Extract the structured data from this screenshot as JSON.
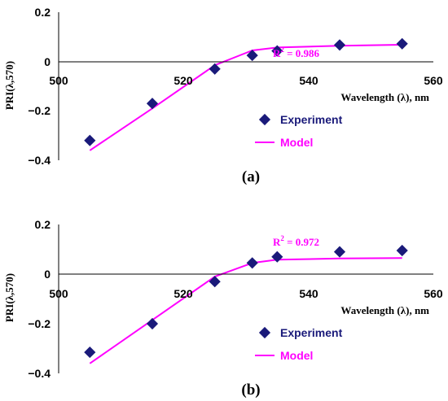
{
  "colors": {
    "experiment": "#1a1a7a",
    "model": "#ff00ff",
    "axis": "#000000"
  },
  "chart_data": [
    {
      "type": "scatter",
      "panel_label": "(a)",
      "xlabel": "Wavelength (λ), nm",
      "ylabel": "PRI(λ,570)",
      "xlim": [
        500,
        560
      ],
      "ylim": [
        -0.4,
        0.2
      ],
      "x_ticks": [
        "500",
        "520",
        "540",
        "560"
      ],
      "y_ticks": [
        "0.2",
        "0",
        "−0.2",
        "−0.4"
      ],
      "annotation": {
        "prefix": "R",
        "sup": "2",
        "suffix": " = 0.986"
      },
      "legend": {
        "placement": "lower-right",
        "experiment": "Experiment",
        "model": "Model"
      },
      "series": [
        {
          "name": "Experiment",
          "kind": "markers",
          "x": [
            505,
            515,
            525,
            531,
            535,
            545,
            555
          ],
          "y": [
            -0.32,
            -0.17,
            -0.03,
            0.025,
            0.043,
            0.067,
            0.072
          ]
        },
        {
          "name": "Model",
          "kind": "line",
          "x": [
            505,
            515,
            525,
            531,
            535,
            545,
            555
          ],
          "y": [
            -0.36,
            -0.19,
            -0.015,
            0.045,
            0.057,
            0.064,
            0.068
          ]
        }
      ]
    },
    {
      "type": "scatter",
      "panel_label": "(b)",
      "xlabel": "Wavelength (λ), nm",
      "ylabel": "PRI(λ,570)",
      "xlim": [
        500,
        560
      ],
      "ylim": [
        -0.4,
        0.2
      ],
      "x_ticks": [
        "500",
        "520",
        "540",
        "560"
      ],
      "y_ticks": [
        "0.2",
        "0",
        "−0.2",
        "−0.4"
      ],
      "annotation": {
        "prefix": "R",
        "sup": "2",
        "suffix": " = 0.972"
      },
      "legend": {
        "placement": "lower-right",
        "experiment": "Experiment",
        "model": "Model"
      },
      "series": [
        {
          "name": "Experiment",
          "kind": "markers",
          "x": [
            505,
            515,
            525,
            531,
            535,
            545,
            555
          ],
          "y": [
            -0.315,
            -0.2,
            -0.03,
            0.045,
            0.07,
            0.09,
            0.095
          ]
        },
        {
          "name": "Model",
          "kind": "line",
          "x": [
            505,
            515,
            525,
            531,
            535,
            545,
            555
          ],
          "y": [
            -0.36,
            -0.185,
            -0.01,
            0.045,
            0.058,
            0.063,
            0.065
          ]
        }
      ]
    }
  ]
}
